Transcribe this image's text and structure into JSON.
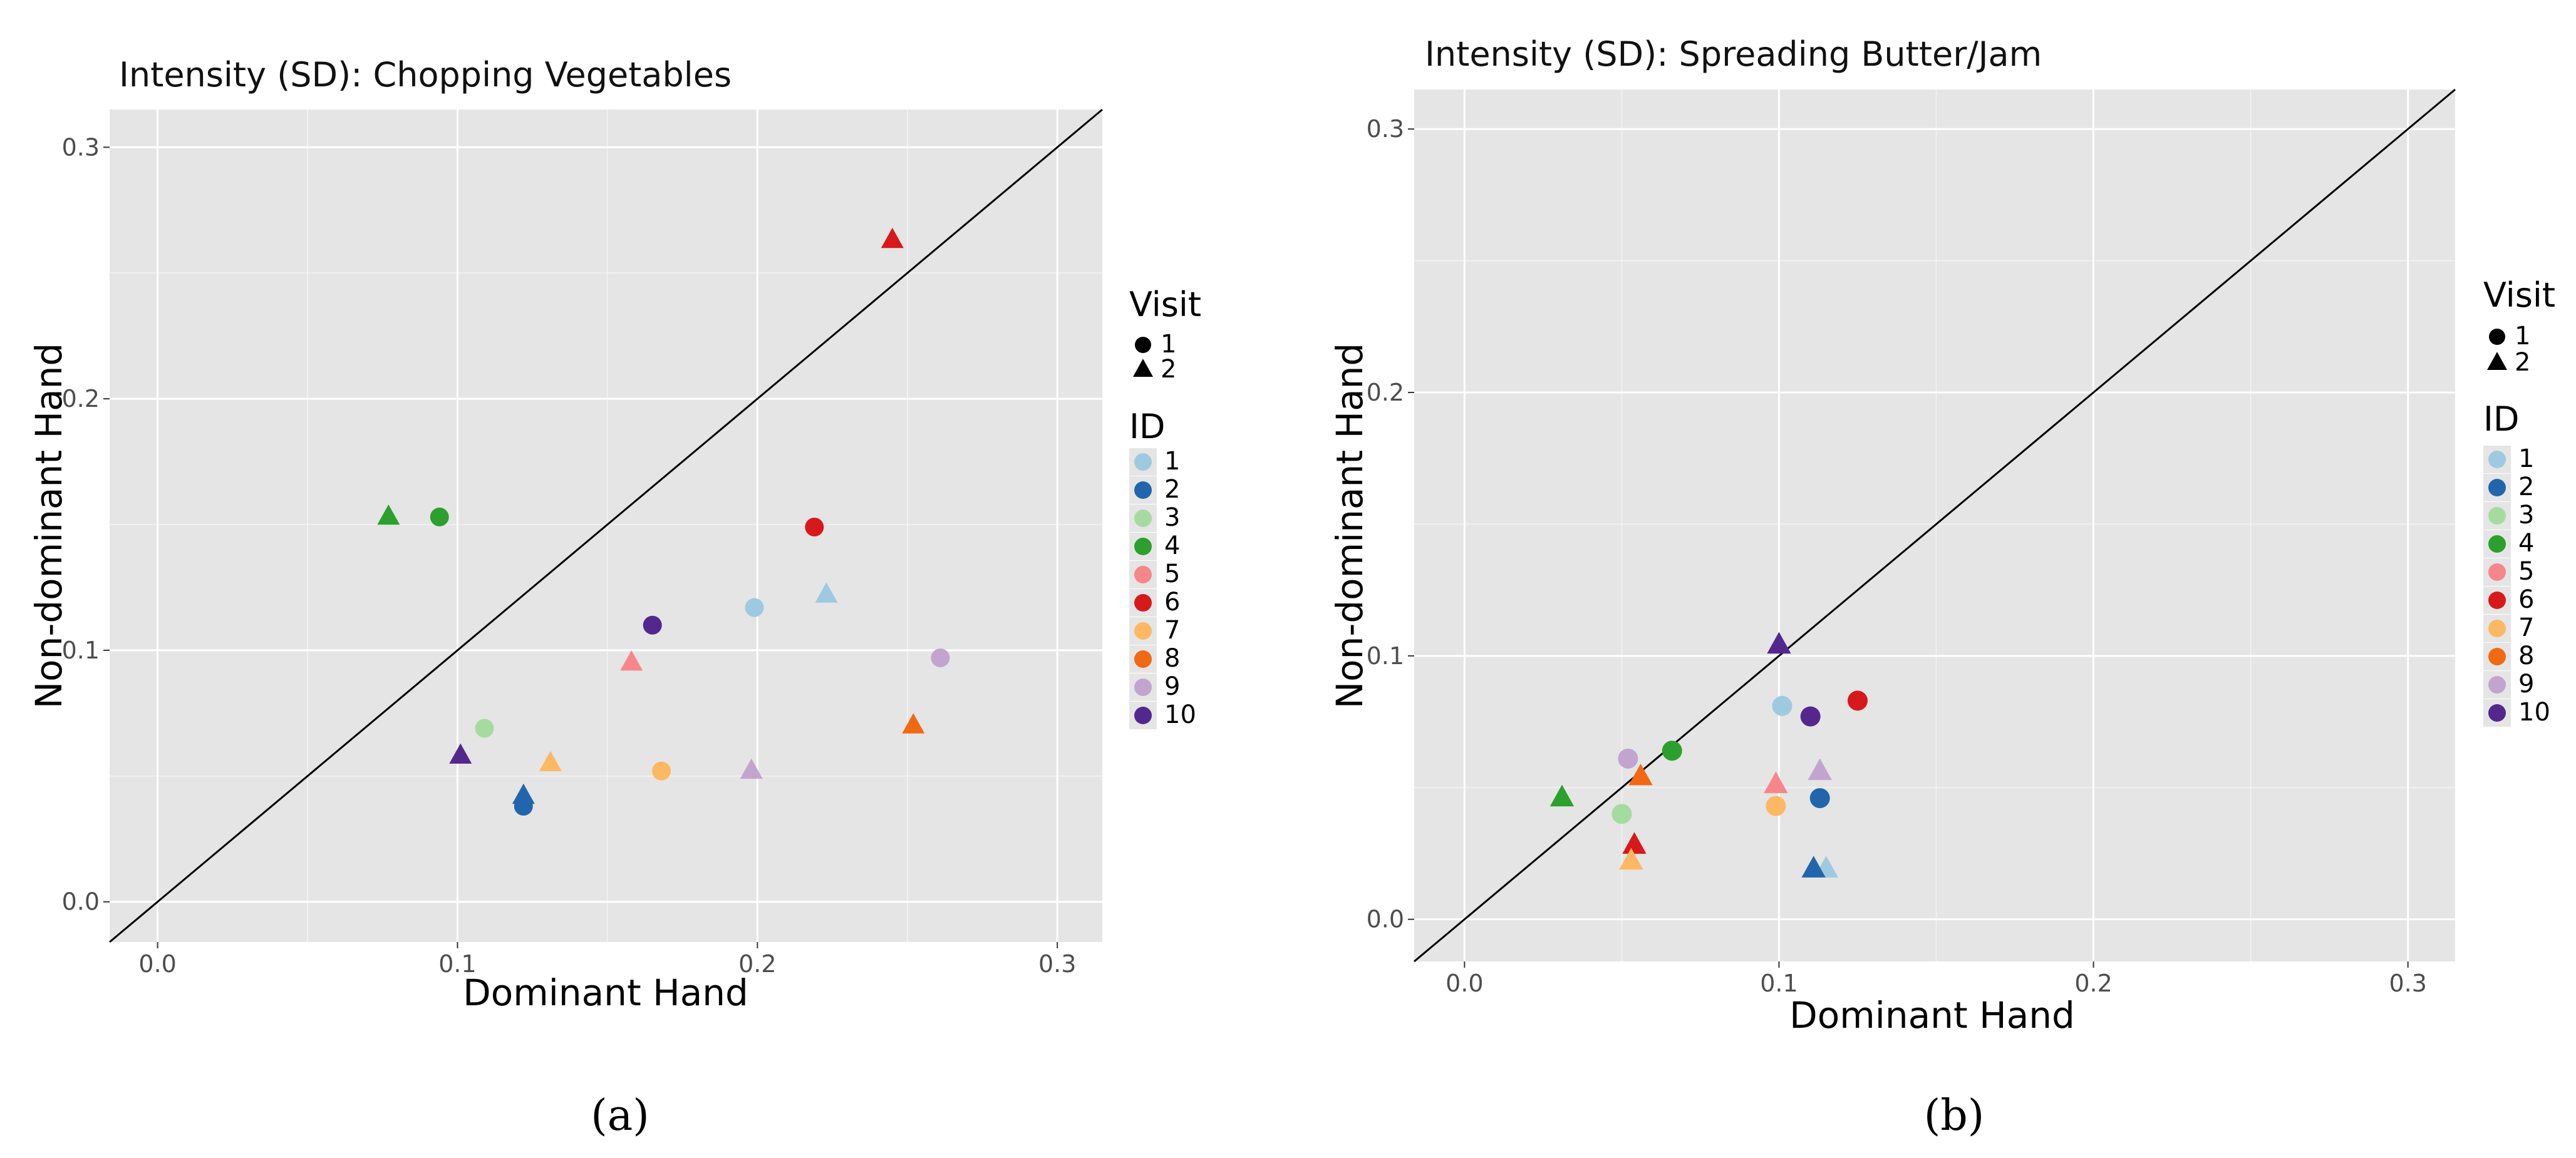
{
  "colors": {
    "panel_bg": "#e5e5e5",
    "grid": "#ffffff",
    "identity_line": "#000000",
    "id_palette": [
      "#9ecae1",
      "#2166ac",
      "#a6dba0",
      "#2ca02c",
      "#f7868b",
      "#d7191c",
      "#fdb863",
      "#f16913",
      "#c2a5cf",
      "#54278f"
    ]
  },
  "chart_data": [
    {
      "type": "scatter",
      "title": "Intensity (SD): Chopping Vegetables",
      "xlabel": "Dominant Hand",
      "ylabel": "Non-dominant Hand",
      "caption": "(a)",
      "xlim": [
        -0.016,
        0.315
      ],
      "ylim": [
        -0.016,
        0.315
      ],
      "x_ticks": [
        0.0,
        0.1,
        0.2,
        0.3
      ],
      "y_ticks": [
        0.0,
        0.1,
        0.2,
        0.3
      ],
      "x_tick_labels": [
        "0.0",
        "0.1",
        "0.2",
        "0.3"
      ],
      "y_tick_labels": [
        "0.0",
        "0.1",
        "0.2",
        "0.3"
      ],
      "reference_line": "y = x",
      "grid": true,
      "legend": {
        "placement": "right",
        "shape_title": "Visit",
        "shape_items": [
          {
            "label": "1",
            "shape": "circle"
          },
          {
            "label": "2",
            "shape": "triangle"
          }
        ],
        "color_title": "ID",
        "color_items": [
          "1",
          "2",
          "3",
          "4",
          "5",
          "6",
          "7",
          "8",
          "9",
          "10"
        ]
      },
      "points": [
        {
          "id": 1,
          "visit": 1,
          "x": 0.199,
          "y": 0.117
        },
        {
          "id": 1,
          "visit": 2,
          "x": 0.223,
          "y": 0.122
        },
        {
          "id": 2,
          "visit": 1,
          "x": 0.122,
          "y": 0.038
        },
        {
          "id": 2,
          "visit": 2,
          "x": 0.122,
          "y": 0.042
        },
        {
          "id": 3,
          "visit": 1,
          "x": 0.109,
          "y": 0.069
        },
        {
          "id": 4,
          "visit": 1,
          "x": 0.094,
          "y": 0.153
        },
        {
          "id": 4,
          "visit": 2,
          "x": 0.077,
          "y": 0.153
        },
        {
          "id": 5,
          "visit": 2,
          "x": 0.158,
          "y": 0.095
        },
        {
          "id": 6,
          "visit": 1,
          "x": 0.219,
          "y": 0.149
        },
        {
          "id": 6,
          "visit": 2,
          "x": 0.245,
          "y": 0.263
        },
        {
          "id": 7,
          "visit": 1,
          "x": 0.168,
          "y": 0.052
        },
        {
          "id": 7,
          "visit": 2,
          "x": 0.131,
          "y": 0.055
        },
        {
          "id": 8,
          "visit": 2,
          "x": 0.252,
          "y": 0.07
        },
        {
          "id": 9,
          "visit": 1,
          "x": 0.261,
          "y": 0.097
        },
        {
          "id": 9,
          "visit": 2,
          "x": 0.198,
          "y": 0.052
        },
        {
          "id": 10,
          "visit": 1,
          "x": 0.165,
          "y": 0.11
        },
        {
          "id": 10,
          "visit": 2,
          "x": 0.101,
          "y": 0.058
        }
      ]
    },
    {
      "type": "scatter",
      "title": "Intensity (SD): Spreading Butter/Jam",
      "xlabel": "Dominant Hand",
      "ylabel": "Non-dominant Hand",
      "caption": "(b)",
      "xlim": [
        -0.016,
        0.315
      ],
      "ylim": [
        -0.016,
        0.315
      ],
      "x_ticks": [
        0.0,
        0.1,
        0.2,
        0.3
      ],
      "y_ticks": [
        0.0,
        0.1,
        0.2,
        0.3
      ],
      "x_tick_labels": [
        "0.0",
        "0.1",
        "0.2",
        "0.3"
      ],
      "y_tick_labels": [
        "0.0",
        "0.1",
        "0.2",
        "0.3"
      ],
      "reference_line": "y = x",
      "grid": true,
      "legend": {
        "placement": "right",
        "shape_title": "Visit",
        "shape_items": [
          {
            "label": "1",
            "shape": "circle"
          },
          {
            "label": "2",
            "shape": "triangle"
          }
        ],
        "color_title": "ID",
        "color_items": [
          "1",
          "2",
          "3",
          "4",
          "5",
          "6",
          "7",
          "8",
          "9",
          "10"
        ]
      },
      "points": [
        {
          "id": 1,
          "visit": 1,
          "x": 0.101,
          "y": 0.081
        },
        {
          "id": 1,
          "visit": 2,
          "x": 0.115,
          "y": 0.019
        },
        {
          "id": 2,
          "visit": 1,
          "x": 0.113,
          "y": 0.046
        },
        {
          "id": 2,
          "visit": 2,
          "x": 0.111,
          "y": 0.019
        },
        {
          "id": 3,
          "visit": 1,
          "x": 0.05,
          "y": 0.04
        },
        {
          "id": 4,
          "visit": 1,
          "x": 0.066,
          "y": 0.064
        },
        {
          "id": 4,
          "visit": 2,
          "x": 0.031,
          "y": 0.046
        },
        {
          "id": 5,
          "visit": 2,
          "x": 0.099,
          "y": 0.051
        },
        {
          "id": 6,
          "visit": 1,
          "x": 0.125,
          "y": 0.083
        },
        {
          "id": 6,
          "visit": 2,
          "x": 0.054,
          "y": 0.028
        },
        {
          "id": 7,
          "visit": 1,
          "x": 0.099,
          "y": 0.043
        },
        {
          "id": 7,
          "visit": 2,
          "x": 0.053,
          "y": 0.022
        },
        {
          "id": 8,
          "visit": 2,
          "x": 0.056,
          "y": 0.054
        },
        {
          "id": 9,
          "visit": 1,
          "x": 0.052,
          "y": 0.061
        },
        {
          "id": 9,
          "visit": 2,
          "x": 0.113,
          "y": 0.056
        },
        {
          "id": 10,
          "visit": 1,
          "x": 0.11,
          "y": 0.077
        },
        {
          "id": 10,
          "visit": 2,
          "x": 0.1,
          "y": 0.104
        }
      ]
    }
  ]
}
